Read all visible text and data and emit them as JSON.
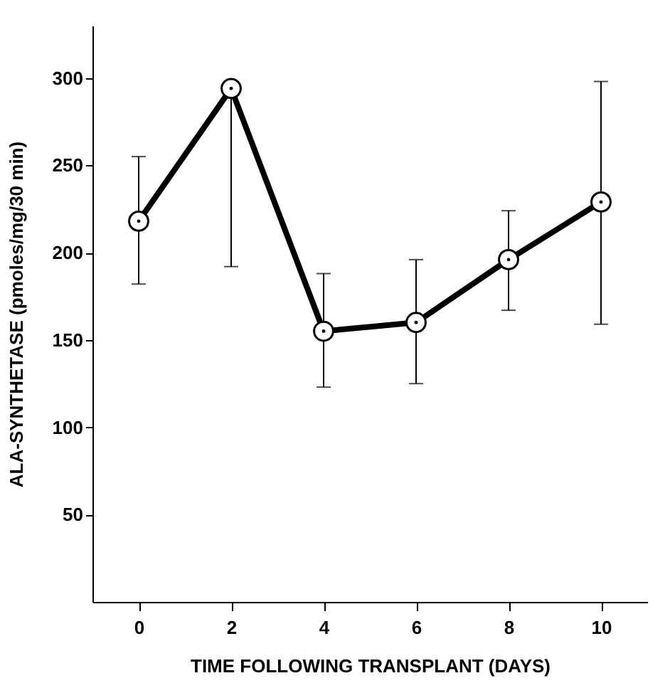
{
  "chart_data": {
    "type": "line",
    "xlabel": "TIME FOLLOWING TRANSPLANT (DAYS)",
    "ylabel": "ALA-SYNTHETASE (pmoles/mg/30 min)",
    "x": [
      0,
      2,
      4,
      6,
      8,
      10
    ],
    "series": [
      {
        "color": "#000000",
        "values": [
          218,
          294,
          155,
          160,
          196,
          229
        ],
        "errors": [
          [
            182,
            255
          ],
          [
            192,
            294
          ],
          [
            123,
            188
          ],
          [
            125,
            196
          ],
          [
            167,
            224
          ],
          [
            159,
            298
          ]
        ]
      }
    ],
    "xlim": [
      -1,
      11
    ],
    "ylim": [
      0,
      330
    ],
    "xticks": [
      0,
      2,
      4,
      6,
      8,
      10
    ],
    "yticks": [
      50,
      100,
      150,
      200,
      250,
      300
    ],
    "grid": false,
    "marker": "circle",
    "line_style": "solid"
  }
}
